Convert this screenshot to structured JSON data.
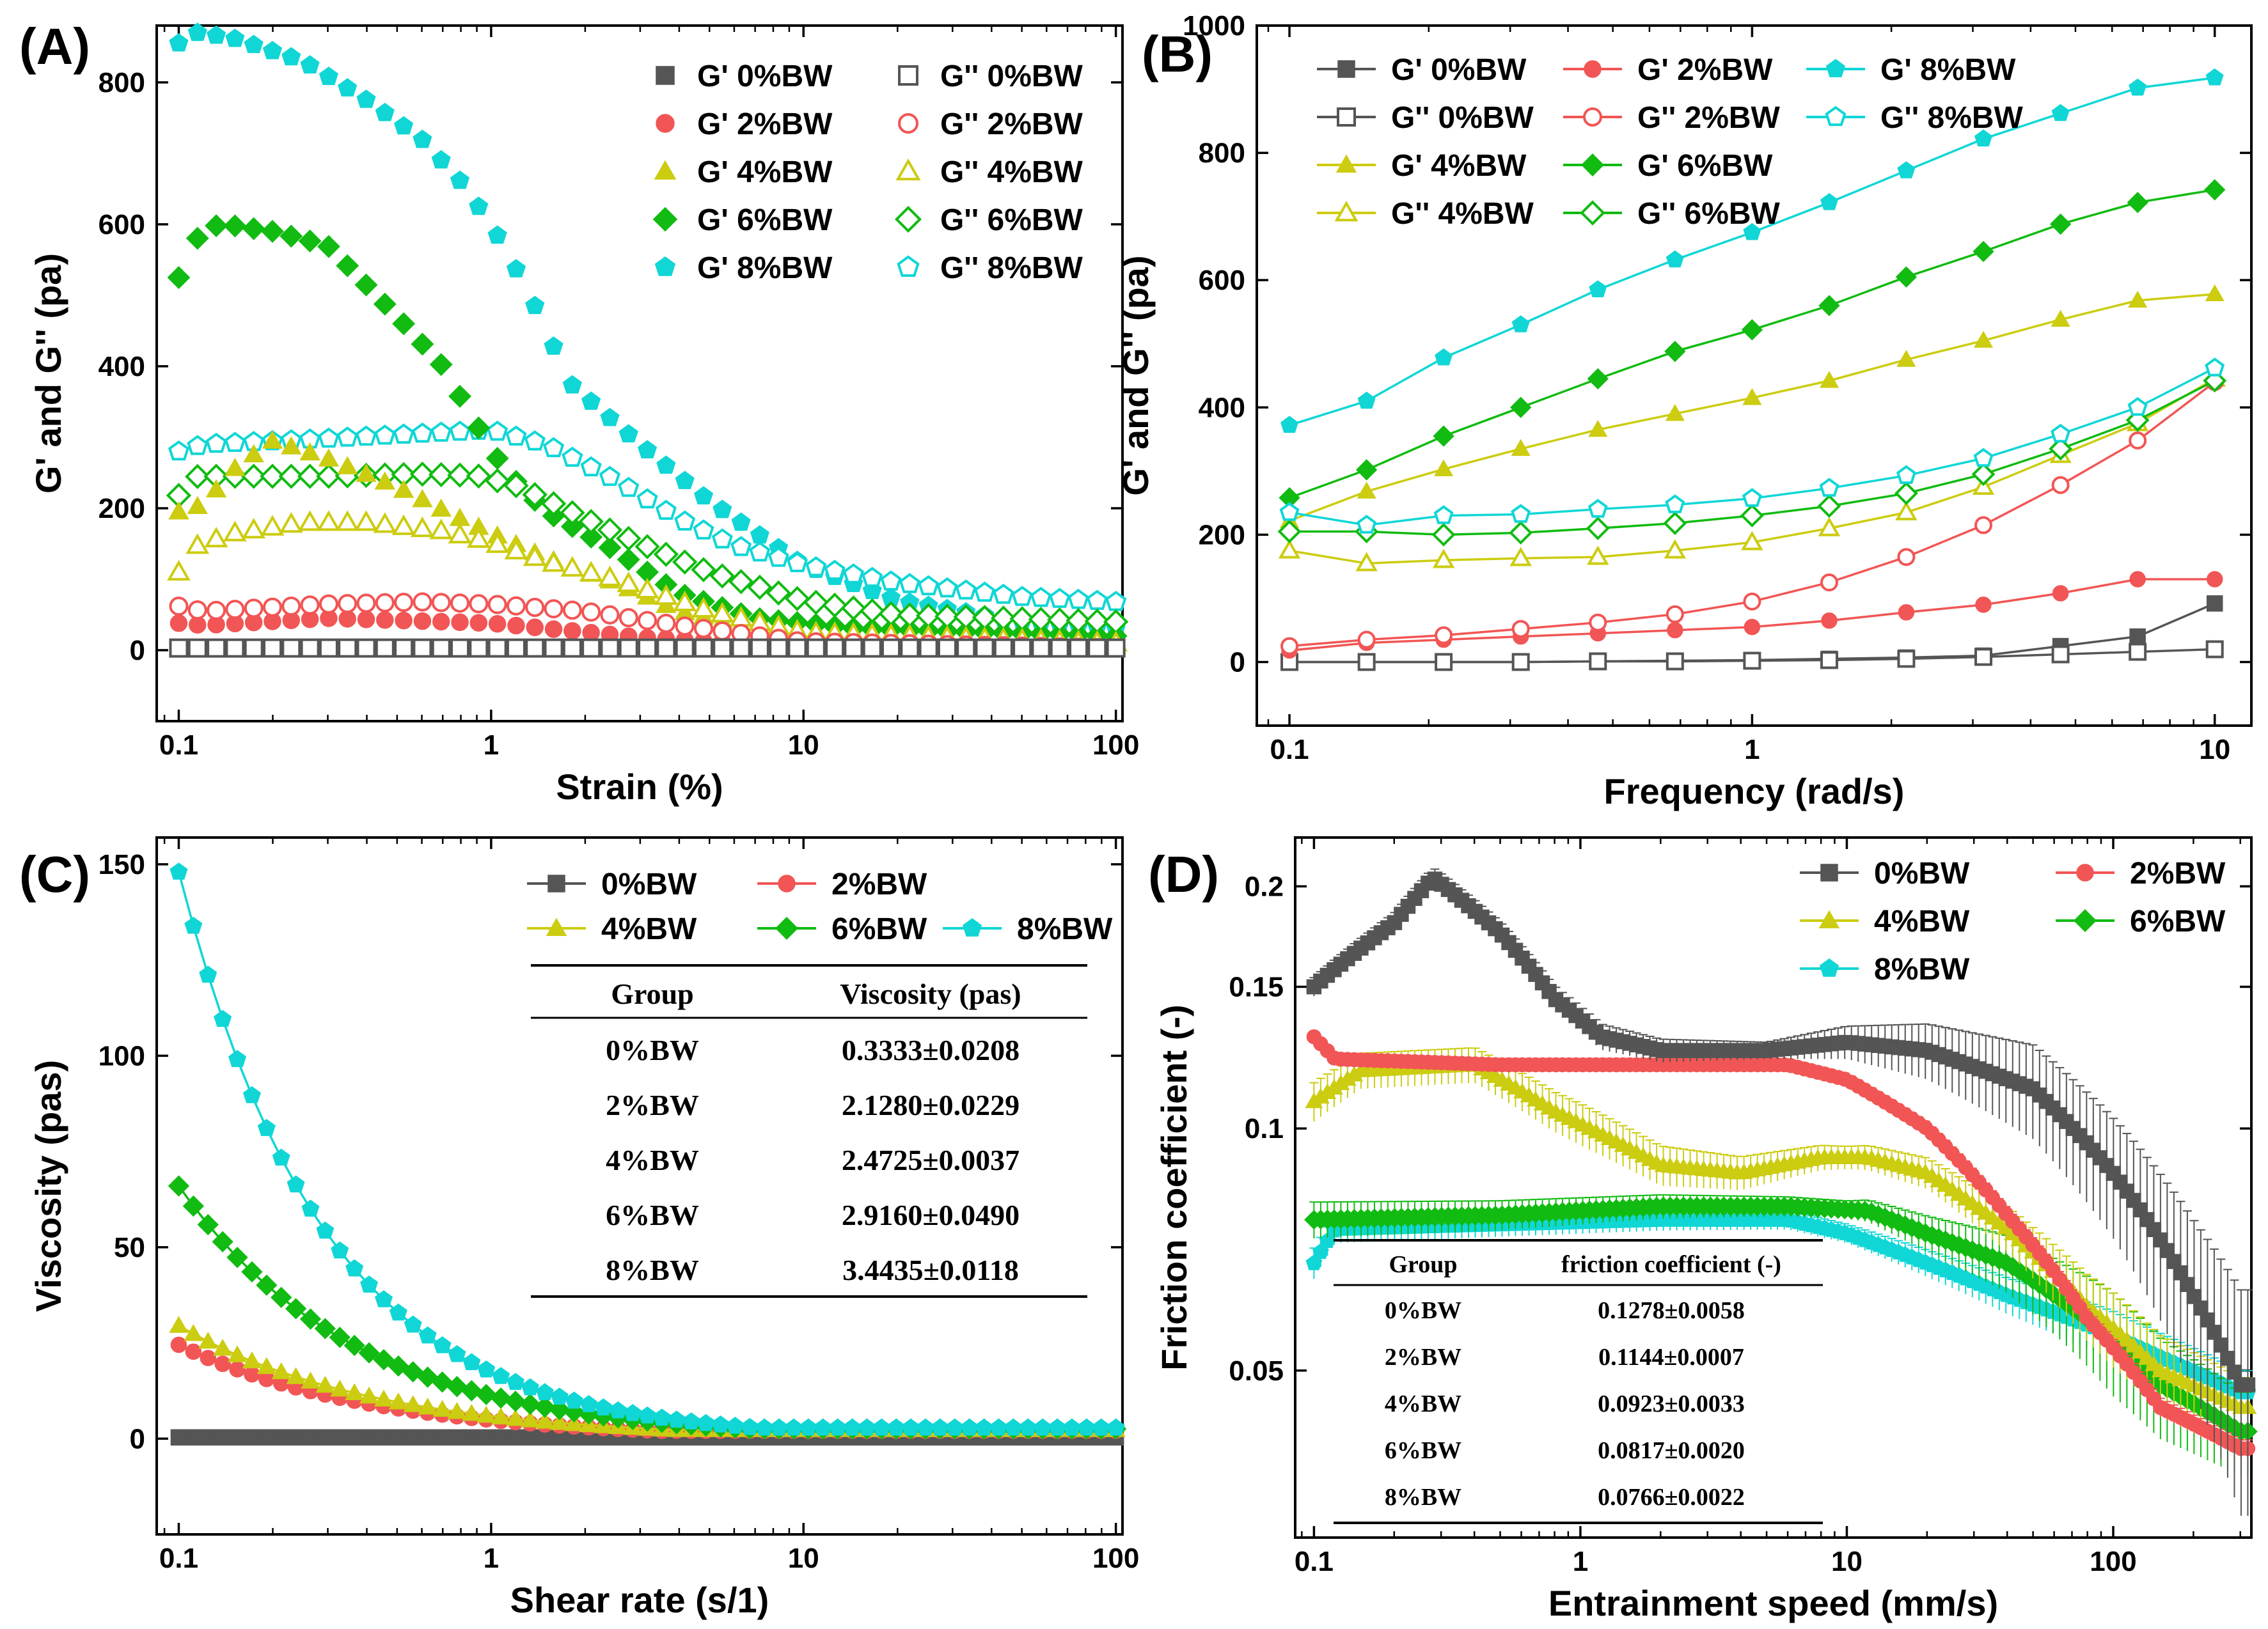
{
  "colors": {
    "bw0": "#555555",
    "bw2": "#f25555",
    "bw4": "#cccc11",
    "bw6": "#11bb11",
    "bw8": "#11d6d6"
  },
  "chart_data": [
    {
      "id": "A",
      "type": "scatter",
      "panel_label": "(A)",
      "xlabel": "Strain (%)",
      "ylabel": "G' and G'' (pa)",
      "xscale": "log",
      "xlim": [
        0.085,
        105
      ],
      "ylim": [
        -100,
        880
      ],
      "xticks": [
        0.1,
        1,
        10,
        100
      ],
      "xtick_labels": [
        "0.1",
        "1",
        "10",
        "100"
      ],
      "yticks": [
        0,
        200,
        400,
        600,
        800
      ],
      "ytick_labels": [
        "0",
        "200",
        "400",
        "600",
        "800"
      ],
      "legend_position": "top-right",
      "legend_columns": 2,
      "series": [
        {
          "name": "G' 0%BW",
          "color": "bw0",
          "marker": "square",
          "filled": true,
          "anchors_x": [
            0.1,
            1,
            100
          ],
          "anchors_y": [
            2,
            2,
            2
          ]
        },
        {
          "name": "G' 2%BW",
          "color": "bw2",
          "marker": "circle",
          "filled": true,
          "anchors_x": [
            0.1,
            0.12,
            0.3,
            1,
            3,
            10,
            100
          ],
          "anchors_y": [
            38,
            35,
            45,
            38,
            18,
            5,
            2
          ]
        },
        {
          "name": "G' 4%BW",
          "color": "bw4",
          "marker": "triangle",
          "filled": true,
          "anchors_x": [
            0.1,
            0.12,
            0.15,
            0.2,
            0.3,
            0.5,
            0.8,
            1,
            1.5,
            2.5,
            4,
            8,
            20,
            100
          ],
          "anchors_y": [
            195,
            205,
            255,
            295,
            270,
            230,
            185,
            165,
            130,
            95,
            55,
            25,
            10,
            5
          ]
        },
        {
          "name": "G' 6%BW",
          "color": "bw6",
          "marker": "diamond",
          "filled": true,
          "anchors_x": [
            0.1,
            0.12,
            0.15,
            0.2,
            0.3,
            0.5,
            0.7,
            0.85,
            1.1,
            1.5,
            2.5,
            4,
            7,
            15,
            40,
            100
          ],
          "anchors_y": [
            525,
            598,
            598,
            590,
            570,
            470,
            400,
            335,
            255,
            195,
            140,
            80,
            45,
            30,
            25,
            20
          ]
        },
        {
          "name": "G' 8%BW",
          "color": "bw8",
          "marker": "pentagon",
          "filled": true,
          "anchors_x": [
            0.1,
            0.115,
            0.15,
            0.25,
            0.4,
            0.6,
            0.8,
            1,
            1.3,
            1.8,
            3,
            5,
            10,
            20,
            50,
            100
          ],
          "anchors_y": [
            855,
            870,
            862,
            830,
            775,
            720,
            660,
            600,
            510,
            375,
            290,
            210,
            120,
            70,
            40,
            30
          ]
        },
        {
          "name": "G'' 0%BW",
          "color": "bw0",
          "marker": "square",
          "filled": false,
          "anchors_x": [
            0.1,
            1,
            100
          ],
          "anchors_y": [
            3,
            3,
            3
          ]
        },
        {
          "name": "G'' 2%BW",
          "color": "bw2",
          "marker": "circle",
          "filled": false,
          "anchors_x": [
            0.1,
            0.12,
            0.3,
            0.6,
            1,
            2,
            4,
            10,
            100
          ],
          "anchors_y": [
            62,
            55,
            65,
            68,
            65,
            55,
            35,
            12,
            3
          ]
        },
        {
          "name": "G'' 4%BW",
          "color": "bw4",
          "marker": "triangle",
          "filled": false,
          "anchors_x": [
            0.1,
            0.115,
            0.15,
            0.25,
            0.4,
            0.7,
            1,
            1.5,
            2.5,
            5,
            10,
            100
          ],
          "anchors_y": [
            110,
            148,
            165,
            180,
            180,
            168,
            152,
            125,
            100,
            55,
            25,
            10
          ]
        },
        {
          "name": "G'' 6%BW",
          "color": "bw6",
          "marker": "diamond",
          "filled": false,
          "anchors_x": [
            0.1,
            0.115,
            0.15,
            0.3,
            0.6,
            0.9,
            1.2,
            2,
            3,
            5,
            10,
            20,
            100
          ],
          "anchors_y": [
            218,
            245,
            245,
            245,
            248,
            246,
            232,
            185,
            150,
            110,
            70,
            50,
            40
          ]
        },
        {
          "name": "G'' 8%BW",
          "color": "bw8",
          "marker": "pentagon",
          "filled": false,
          "anchors_x": [
            0.1,
            0.12,
            0.3,
            0.6,
            1,
            1.5,
            2.5,
            4,
            6,
            10,
            20,
            50,
            100
          ],
          "anchors_y": [
            280,
            290,
            298,
            305,
            310,
            290,
            240,
            185,
            148,
            120,
            95,
            75,
            68
          ]
        }
      ]
    },
    {
      "id": "B",
      "type": "line",
      "panel_label": "(B)",
      "xlabel": "Frequency (rad/s)",
      "ylabel": "G' and G'' (pa)",
      "xscale": "log",
      "xlim": [
        0.085,
        12
      ],
      "ylim": [
        -100,
        1000
      ],
      "xticks": [
        0.1,
        1,
        10
      ],
      "xtick_labels": [
        "0.1",
        "1",
        "10"
      ],
      "yticks": [
        0,
        200,
        400,
        600,
        800,
        1000
      ],
      "ytick_labels": [
        "0",
        "200",
        "400",
        "600",
        "800",
        "1000"
      ],
      "legend_position": "top-left",
      "legend_columns": 3,
      "x": [
        0.1,
        0.1468,
        0.2154,
        0.3162,
        0.4642,
        0.6813,
        1,
        1.468,
        2.154,
        3.162,
        4.642,
        6.813,
        10
      ],
      "series": [
        {
          "name": "G' 0%BW",
          "color": "bw0",
          "marker": "square",
          "filled": true,
          "values": [
            0,
            0,
            0,
            0,
            1,
            2,
            3,
            5,
            7,
            10,
            25,
            40,
            92
          ]
        },
        {
          "name": "G'' 0%BW",
          "color": "bw0",
          "marker": "square",
          "filled": false,
          "values": [
            0,
            0,
            0,
            0,
            1,
            1,
            2,
            3,
            5,
            8,
            12,
            16,
            20
          ]
        },
        {
          "name": "G' 4%BW",
          "color": "bw4",
          "marker": "triangle",
          "filled": true,
          "values": [
            222,
            268,
            303,
            335,
            365,
            390,
            415,
            442,
            475,
            505,
            538,
            568,
            578
          ]
        },
        {
          "name": "G'' 4%BW",
          "color": "bw4",
          "marker": "triangle",
          "filled": false,
          "values": [
            175,
            155,
            160,
            163,
            165,
            175,
            188,
            210,
            235,
            275,
            325,
            375,
            445
          ]
        },
        {
          "name": "G' 2%BW",
          "color": "bw2",
          "marker": "circle",
          "filled": true,
          "values": [
            18,
            30,
            35,
            40,
            45,
            50,
            55,
            65,
            78,
            90,
            108,
            130,
            130
          ]
        },
        {
          "name": "G'' 2%BW",
          "color": "bw2",
          "marker": "circle",
          "filled": false,
          "values": [
            25,
            35,
            42,
            52,
            62,
            75,
            95,
            125,
            165,
            215,
            278,
            348,
            440
          ]
        },
        {
          "name": "G' 6%BW",
          "color": "bw6",
          "marker": "diamond",
          "filled": true,
          "values": [
            258,
            302,
            355,
            400,
            445,
            488,
            522,
            560,
            605,
            645,
            688,
            722,
            742
          ]
        },
        {
          "name": "G'' 6%BW",
          "color": "bw6",
          "marker": "diamond",
          "filled": false,
          "values": [
            205,
            205,
            200,
            203,
            210,
            218,
            230,
            245,
            265,
            295,
            335,
            380,
            442
          ]
        },
        {
          "name": "G' 8%BW",
          "color": "bw8",
          "marker": "pentagon",
          "filled": true,
          "values": [
            372,
            410,
            478,
            530,
            585,
            632,
            675,
            722,
            772,
            822,
            862,
            902,
            918
          ]
        },
        {
          "name": "G'' 8%BW",
          "color": "bw8",
          "marker": "pentagon",
          "filled": false,
          "values": [
            235,
            215,
            230,
            232,
            240,
            247,
            257,
            273,
            293,
            320,
            358,
            400,
            462
          ]
        }
      ]
    },
    {
      "id": "C",
      "type": "line",
      "panel_label": "(C)",
      "xlabel": "Shear rate (s/1)",
      "ylabel": "Viscosity (pas)",
      "xscale": "log",
      "xlim": [
        0.085,
        105
      ],
      "ylim": [
        -25,
        157
      ],
      "xticks": [
        0.1,
        1,
        10,
        100
      ],
      "xtick_labels": [
        "0.1",
        "1",
        "10",
        "100"
      ],
      "yticks": [
        0,
        50,
        100,
        150
      ],
      "ytick_labels": [
        "0",
        "50",
        "100",
        "150"
      ],
      "legend_position": "top-right",
      "legend_columns": 3,
      "series": [
        {
          "name": "0%BW",
          "color": "bw0",
          "marker": "square",
          "filled": true,
          "start": 0.333,
          "exponent": 0
        },
        {
          "name": "2%BW",
          "color": "bw2",
          "marker": "circle",
          "filled": true,
          "start": 24.5,
          "exponent": -0.7
        },
        {
          "name": "4%BW",
          "color": "bw4",
          "marker": "triangle",
          "filled": true,
          "start": 29.5,
          "exponent": -0.7
        },
        {
          "name": "6%BW",
          "color": "bw6",
          "marker": "diamond",
          "filled": true,
          "start": 66,
          "exponent": -0.77
        },
        {
          "name": "8%BW",
          "color": "bw8",
          "marker": "pentagon",
          "filled": true,
          "start": 148,
          "exponent": -0.93
        }
      ],
      "table": {
        "headers": [
          "Group",
          "Viscosity (pas)"
        ],
        "rows": [
          [
            "0%BW",
            "0.3333±0.0208"
          ],
          [
            "2%BW",
            "2.1280±0.0229"
          ],
          [
            "4%BW",
            "2.4725±0.0037"
          ],
          [
            "6%BW",
            "2.9160±0.0490"
          ],
          [
            "8%BW",
            "3.4435±0.0118"
          ]
        ]
      }
    },
    {
      "id": "D",
      "type": "scatter",
      "panel_label": "(D)",
      "xlabel": "Entrainment speed (mm/s)",
      "ylabel": "Friction coefficient (-)",
      "xscale": "log",
      "yscale": "log",
      "xlim": [
        0.085,
        330
      ],
      "ylim": [
        0.031,
        0.23
      ],
      "xticks": [
        0.1,
        1,
        10,
        100
      ],
      "xtick_labels": [
        "0.1",
        "1",
        "10",
        "100"
      ],
      "yticks": [
        0.05,
        0.1,
        0.15,
        0.2
      ],
      "ytick_labels": [
        "0.05",
        "0.1",
        "0.15",
        "0.2"
      ],
      "legend_position": "top-right",
      "legend_columns": 2,
      "series": [
        {
          "name": "0%BW",
          "color": "bw0",
          "marker": "square",
          "filled": true,
          "anchors_x": [
            0.1,
            0.2,
            0.28,
            0.5,
            0.8,
            1.2,
            2,
            5,
            10,
            20,
            50,
            100,
            200,
            300
          ],
          "anchors_y": [
            0.15,
            0.18,
            0.205,
            0.175,
            0.145,
            0.13,
            0.125,
            0.125,
            0.128,
            0.125,
            0.112,
            0.088,
            0.062,
            0.048
          ],
          "error_anchors_x": [
            0.1,
            0.3,
            1,
            5,
            10,
            50,
            300
          ],
          "error_anchors_y": [
            0.004,
            0.006,
            0.005,
            0.003,
            0.006,
            0.015,
            0.015
          ]
        },
        {
          "name": "2%BW",
          "color": "bw2",
          "marker": "circle",
          "filled": true,
          "anchors_x": [
            0.1,
            0.12,
            0.5,
            2,
            6,
            10,
            20,
            40,
            80,
            150,
            300
          ],
          "anchors_y": [
            0.13,
            0.122,
            0.12,
            0.12,
            0.12,
            0.115,
            0.1,
            0.078,
            0.058,
            0.045,
            0.04
          ],
          "error_anchors_x": [
            0.1,
            10,
            300
          ],
          "error_anchors_y": [
            0.002,
            0.002,
            0.001
          ]
        },
        {
          "name": "4%BW",
          "color": "bw4",
          "marker": "triangle",
          "filled": true,
          "anchors_x": [
            0.1,
            0.15,
            0.4,
            0.8,
            1.3,
            2,
            4,
            8,
            12,
            20,
            40,
            80,
            150,
            300
          ],
          "anchors_y": [
            0.108,
            0.118,
            0.12,
            0.105,
            0.097,
            0.09,
            0.088,
            0.092,
            0.092,
            0.088,
            0.075,
            0.06,
            0.05,
            0.045
          ],
          "error_anchors_x": [
            0.1,
            1,
            10,
            100,
            300
          ],
          "error_anchors_y": [
            0.006,
            0.006,
            0.003,
            0.006,
            0.004
          ]
        },
        {
          "name": "6%BW",
          "color": "bw6",
          "marker": "diamond",
          "filled": true,
          "anchors_x": [
            0.1,
            0.5,
            2,
            6,
            12,
            20,
            40,
            80,
            150,
            300
          ],
          "anchors_y": [
            0.077,
            0.078,
            0.08,
            0.08,
            0.079,
            0.074,
            0.068,
            0.058,
            0.048,
            0.042
          ],
          "error_anchors_x": [
            0.1,
            10,
            100,
            300
          ],
          "error_anchors_y": [
            0.004,
            0.002,
            0.008,
            0.005
          ]
        },
        {
          "name": "8%BW",
          "color": "bw8",
          "marker": "pentagon",
          "filled": true,
          "anchors_x": [
            0.1,
            0.12,
            0.5,
            2,
            6,
            10,
            20,
            40,
            80,
            150,
            300
          ],
          "anchors_y": [
            0.068,
            0.075,
            0.076,
            0.077,
            0.077,
            0.074,
            0.068,
            0.062,
            0.057,
            0.052,
            0.047
          ],
          "error_anchors_x": [
            0.1,
            10,
            100,
            300
          ],
          "error_anchors_y": [
            0.003,
            0.002,
            0.004,
            0.003
          ]
        }
      ],
      "table": {
        "headers": [
          "Group",
          "friction coefficient (-)"
        ],
        "rows": [
          [
            "0%BW",
            "0.1278±0.0058"
          ],
          [
            "2%BW",
            "0.1144±0.0007"
          ],
          [
            "4%BW",
            "0.0923±0.0033"
          ],
          [
            "6%BW",
            "0.0817±0.0020"
          ],
          [
            "8%BW",
            "0.0766±0.0022"
          ]
        ]
      }
    }
  ]
}
